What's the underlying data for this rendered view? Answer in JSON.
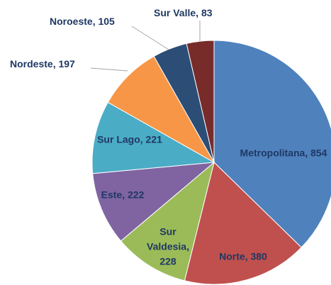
{
  "chart_data": {
    "type": "pie",
    "categories": [
      "Metropolitana",
      "Norte",
      "Sur Valdesia",
      "Este",
      "Sur Lago",
      "Nordeste",
      "Noroeste",
      "Sur Valle"
    ],
    "values": [
      854,
      380,
      228,
      222,
      221,
      197,
      105,
      83
    ],
    "colors": [
      "#4f81bd",
      "#c0504d",
      "#9bbb59",
      "#8064a2",
      "#4bacc6",
      "#f79646",
      "#2c4d75",
      "#772c2a"
    ]
  }
}
